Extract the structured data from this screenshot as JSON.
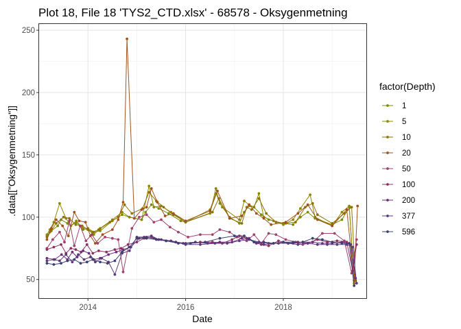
{
  "chart_data": {
    "type": "line",
    "title": "Plot 18, File 18 'TYS2_CTD.xlsx' - 68578  -  Oksygenmetning",
    "xlabel": "Date",
    "ylabel": ".data[[\"Oksygenmetning\"]]",
    "xlim": [
      2013.0,
      2019.7
    ],
    "ylim": [
      35,
      255
    ],
    "x_ticks": [
      2014,
      2016,
      2018
    ],
    "x_tick_labels": [
      "2014",
      "2016",
      "2018"
    ],
    "y_ticks": [
      50,
      100,
      150,
      200,
      250
    ],
    "grid": true,
    "legend": {
      "title": "factor(Depth)",
      "position": "right"
    },
    "series": [
      {
        "name": "1",
        "color": "#7a8c00",
        "x": [
          2013.16,
          2013.22,
          2013.38,
          2013.45,
          2013.58,
          2013.65,
          2013.76,
          2013.9,
          2014.0,
          2014.12,
          2014.25,
          2014.5,
          2014.7,
          2014.85,
          2015.1,
          2015.18,
          2015.3,
          2015.45,
          2015.65,
          2015.9,
          2016.0,
          2016.5,
          2016.62,
          2016.7,
          2016.9,
          2017.1,
          2017.2,
          2017.3,
          2017.4,
          2017.55,
          2017.7,
          2018.0,
          2018.2,
          2018.35,
          2018.5,
          2018.65,
          2019.0,
          2019.2,
          2019.35,
          2019.45
        ],
        "y": [
          85,
          88,
          93,
          98,
          95,
          93,
          96,
          90,
          91,
          88,
          89,
          97,
          102,
          100,
          98,
          104,
          110,
          107,
          103,
          97,
          96,
          103,
          123,
          111,
          100,
          95,
          104,
          109,
          108,
          102,
          98,
          95,
          94,
          100,
          104,
          99,
          94,
          98,
          108,
          52
        ]
      },
      {
        "name": "5",
        "color": "#8b8800",
        "x": [
          2013.16,
          2013.22,
          2013.3,
          2013.42,
          2013.55,
          2013.65,
          2013.76,
          2013.9,
          2014.0,
          2014.12,
          2014.25,
          2014.5,
          2014.7,
          2014.85,
          2015.1,
          2015.25,
          2015.35,
          2015.5,
          2015.7,
          2016.0,
          2016.5,
          2016.62,
          2016.75,
          2017.1,
          2017.2,
          2017.3,
          2017.4,
          2017.5,
          2017.6,
          2017.8,
          2018.0,
          2018.2,
          2018.35,
          2018.55,
          2018.65,
          2019.0,
          2019.2,
          2019.35,
          2019.45
        ],
        "y": [
          86,
          90,
          96,
          111,
          99,
          93,
          97,
          91,
          90,
          86,
          91,
          98,
          104,
          100,
          98,
          125,
          108,
          109,
          104,
          96,
          106,
          119,
          108,
          98,
          113,
          110,
          108,
          119,
          100,
          97,
          94,
          98,
          107,
          118,
          100,
          93,
          104,
          109,
          47
        ]
      },
      {
        "name": "10",
        "color": "#8f7200",
        "x": [
          2013.16,
          2013.25,
          2013.35,
          2013.5,
          2013.62,
          2013.75,
          2013.88,
          2014.0,
          2014.1,
          2014.22,
          2014.45,
          2014.62,
          2014.75,
          2014.9,
          2015.12,
          2015.25,
          2015.4,
          2015.55,
          2015.75,
          2016.0,
          2016.55,
          2016.68,
          2016.9,
          2017.15,
          2017.25,
          2017.35,
          2017.5,
          2017.65,
          2017.85,
          2018.05,
          2018.25,
          2018.45,
          2018.6,
          2018.7,
          2019.0,
          2019.25,
          2019.4,
          2019.48
        ],
        "y": [
          84,
          89,
          95,
          100,
          99,
          94,
          93,
          90,
          88,
          90,
          96,
          100,
          110,
          103,
          107,
          120,
          113,
          108,
          102,
          96,
          104,
          115,
          99,
          95,
          108,
          106,
          115,
          103,
          96,
          95,
          96,
          108,
          111,
          102,
          95,
          103,
          108,
          49
        ]
      },
      {
        "name": "20",
        "color": "#a1521c",
        "x": [
          2013.16,
          2013.25,
          2013.35,
          2013.48,
          2013.6,
          2013.72,
          2013.82,
          2013.95,
          2014.05,
          2014.15,
          2014.3,
          2014.5,
          2014.62,
          2014.72,
          2014.8,
          2014.95,
          2015.1,
          2015.2,
          2015.3,
          2015.42,
          2015.58,
          2015.75,
          2016.0,
          2016.5,
          2016.65,
          2016.9,
          2017.15,
          2017.3,
          2017.45,
          2017.6,
          2017.75,
          2018.05,
          2018.3,
          2018.5,
          2018.7,
          2019.0,
          2019.3,
          2019.45,
          2019.52
        ],
        "y": [
          82,
          91,
          98,
          93,
          85,
          104,
          97,
          96,
          85,
          79,
          86,
          90,
          98,
          112,
          243,
          99,
          106,
          108,
          123,
          112,
          101,
          103,
          97,
          105,
          121,
          99,
          101,
          110,
          103,
          99,
          94,
          96,
          103,
          110,
          98,
          93,
          106,
          49,
          109
        ]
      },
      {
        "name": "50",
        "color": "#a0416e",
        "x": [
          2013.16,
          2013.28,
          2013.42,
          2013.52,
          2013.62,
          2013.72,
          2013.84,
          2013.96,
          2014.08,
          2014.2,
          2014.35,
          2014.5,
          2014.62,
          2014.72,
          2014.9,
          2015.05,
          2015.2,
          2015.35,
          2015.5,
          2015.68,
          2015.85,
          2016.05,
          2016.3,
          2016.55,
          2016.7,
          2016.9,
          2017.05,
          2017.25,
          2017.4,
          2017.55,
          2017.7,
          2017.85,
          2018.05,
          2018.25,
          2018.4,
          2018.6,
          2018.8,
          2019.05,
          2019.25,
          2019.4,
          2019.5
        ],
        "y": [
          75,
          82,
          88,
          80,
          97,
          77,
          93,
          81,
          86,
          79,
          84,
          83,
          82,
          56,
          91,
          100,
          102,
          96,
          98,
          92,
          88,
          84,
          86,
          86,
          90,
          88,
          84,
          81,
          86,
          79,
          87,
          86,
          82,
          80,
          78,
          80,
          87,
          87,
          81,
          55,
          82
        ]
      },
      {
        "name": "100",
        "color": "#8e3063",
        "x": [
          2013.16,
          2013.3,
          2013.45,
          2013.55,
          2013.65,
          2013.75,
          2013.86,
          2013.98,
          2014.1,
          2014.22,
          2014.38,
          2014.55,
          2014.68,
          2014.82,
          2015.0,
          2015.15,
          2015.3,
          2015.45,
          2015.6,
          2015.8,
          2016.0,
          2016.3,
          2016.55,
          2016.75,
          2016.95,
          2017.1,
          2017.25,
          2017.4,
          2017.55,
          2017.7,
          2017.9,
          2018.1,
          2018.3,
          2018.5,
          2018.7,
          2018.9,
          2019.1,
          2019.3,
          2019.42,
          2019.5
        ],
        "y": [
          74,
          76,
          78,
          71,
          75,
          74,
          72,
          78,
          71,
          73,
          72,
          74,
          75,
          78,
          80,
          83,
          84,
          82,
          81,
          80,
          79,
          80,
          80,
          79,
          82,
          85,
          83,
          80,
          78,
          77,
          81,
          79,
          80,
          79,
          82,
          80,
          81,
          80,
          57,
          78
        ]
      },
      {
        "name": "200",
        "color": "#6e2f78",
        "x": [
          2013.16,
          2013.32,
          2013.46,
          2013.58,
          2013.68,
          2013.78,
          2013.9,
          2014.02,
          2014.12,
          2014.25,
          2014.42,
          2014.58,
          2014.72,
          2014.88,
          2015.05,
          2015.2,
          2015.35,
          2015.5,
          2015.7,
          2015.95,
          2016.2,
          2016.45,
          2016.7,
          2016.95,
          2017.15,
          2017.3,
          2017.45,
          2017.6,
          2017.8,
          2018.0,
          2018.2,
          2018.4,
          2018.6,
          2018.8,
          2019.0,
          2019.2,
          2019.38,
          2019.48
        ],
        "y": [
          67,
          66,
          70,
          66,
          72,
          68,
          73,
          71,
          66,
          67,
          70,
          72,
          74,
          76,
          83,
          84,
          83,
          82,
          81,
          79,
          80,
          79,
          80,
          80,
          83,
          83,
          79,
          78,
          79,
          80,
          79,
          80,
          80,
          79,
          79,
          80,
          78,
          51
        ]
      },
      {
        "name": "377",
        "color": "#5b3a7c",
        "x": [
          2013.16,
          2013.3,
          2013.42,
          2013.55,
          2013.68,
          2013.8,
          2013.92,
          2014.05,
          2014.15,
          2014.28,
          2014.42,
          2014.55,
          2014.7,
          2014.85,
          2015.0,
          2015.15,
          2015.3,
          2015.45,
          2015.6,
          2015.8,
          2016.0,
          2016.3,
          2016.6,
          2016.85,
          2017.1,
          2017.3,
          2017.5,
          2017.7,
          2017.9,
          2018.1,
          2018.3,
          2018.5,
          2018.7,
          2018.9,
          2019.1,
          2019.3,
          2019.42,
          2019.5
        ],
        "y": [
          65,
          66,
          65,
          70,
          64,
          70,
          66,
          68,
          64,
          67,
          64,
          54,
          71,
          73,
          84,
          84,
          85,
          82,
          81,
          80,
          78,
          78,
          79,
          79,
          81,
          82,
          80,
          79,
          79,
          79,
          78,
          79,
          78,
          78,
          78,
          78,
          76,
          47
        ]
      },
      {
        "name": "596",
        "color": "#3b3f72",
        "x": [
          2013.16,
          2013.3,
          2013.45,
          2013.58,
          2013.72,
          2013.85,
          2013.98,
          2014.1,
          2014.25,
          2014.4,
          2014.55,
          2014.7,
          2014.85,
          2015.0,
          2015.2,
          2015.4,
          2015.6,
          2015.85,
          2016.1,
          2016.4,
          2016.7,
          2017.0,
          2017.2,
          2017.4,
          2017.6,
          2017.8,
          2018.0,
          2018.2,
          2018.4,
          2018.6,
          2018.8,
          2019.0,
          2019.2,
          2019.35,
          2019.45
        ],
        "y": [
          63,
          62,
          63,
          65,
          66,
          63,
          64,
          66,
          64,
          63,
          65,
          72,
          76,
          83,
          83,
          82,
          81,
          79,
          79,
          80,
          83,
          85,
          85,
          80,
          80,
          79,
          80,
          80,
          80,
          83,
          82,
          80,
          79,
          79,
          45
        ]
      }
    ]
  }
}
